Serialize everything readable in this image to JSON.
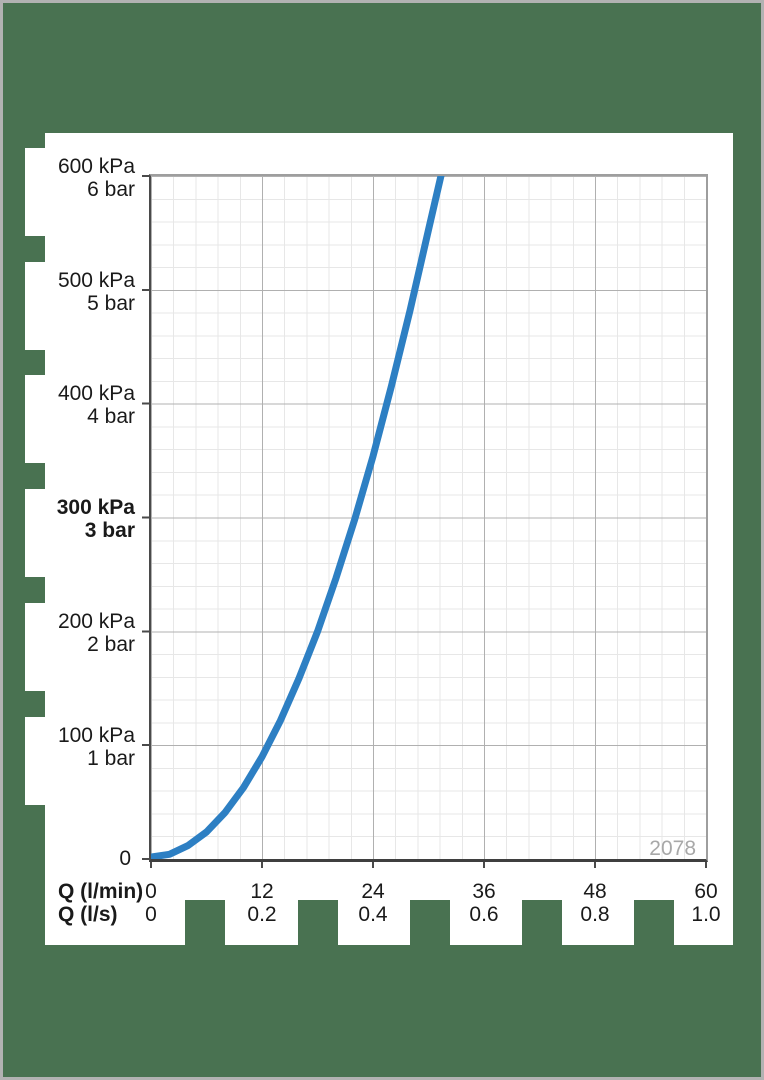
{
  "page": {
    "background_color": "#497251",
    "border_color": "#b2b2b2",
    "panel_color": "#ffffff"
  },
  "chart_data": {
    "type": "line",
    "title": "",
    "curve_label": "2078",
    "x_axis": {
      "rows": [
        {
          "label": "Q (l/min)",
          "ticks": [
            0,
            12,
            24,
            36,
            48,
            60
          ]
        },
        {
          "label": "Q (l/s)",
          "ticks": [
            0,
            0.2,
            0.4,
            0.6,
            0.8,
            1.0
          ]
        }
      ],
      "range_lmin": [
        0,
        60
      ],
      "minor_step_lmin": 2.4
    },
    "y_axis": {
      "ticks_kpa": [
        0,
        100,
        200,
        300,
        400,
        500,
        600
      ],
      "ticks_bar": [
        0,
        1,
        2,
        3,
        4,
        5,
        6
      ],
      "range_kpa": [
        0,
        600
      ],
      "minor_step_kpa": 20,
      "bold_tick_kpa": 300
    },
    "grid": {
      "shown": true,
      "major_x_step_lmin": 12,
      "major_y_step_kpa": 100
    },
    "series": [
      {
        "name": "pressure-loss-curve",
        "color": "#2d7fc3",
        "points_q_lmin_vs_kpa": [
          [
            0,
            0
          ],
          [
            2,
            2.4
          ],
          [
            4,
            10
          ],
          [
            6,
            22
          ],
          [
            8,
            39
          ],
          [
            10,
            61
          ],
          [
            12,
            88
          ],
          [
            14,
            120
          ],
          [
            16,
            157
          ],
          [
            18,
            198
          ],
          [
            20,
            245
          ],
          [
            22,
            296
          ],
          [
            24,
            352
          ],
          [
            26,
            414
          ],
          [
            28,
            480
          ],
          [
            30,
            551
          ],
          [
            31.4,
            600
          ]
        ]
      }
    ]
  },
  "y_labels": [
    {
      "kpa": "600 kPa",
      "bar": "6 bar"
    },
    {
      "kpa": "500 kPa",
      "bar": "5 bar"
    },
    {
      "kpa": "400 kPa",
      "bar": "4 bar"
    },
    {
      "kpa": "300 kPa",
      "bar": "3 bar"
    },
    {
      "kpa": "200 kPa",
      "bar": "2 bar"
    },
    {
      "kpa": "100 kPa",
      "bar": "1 bar"
    }
  ],
  "y_zero": "0",
  "x_header": {
    "row1": "Q (l/min)",
    "row2": "Q (l/s)"
  },
  "x_ticks": [
    {
      "lmin": "0",
      "ls": "0"
    },
    {
      "lmin": "12",
      "ls": "0.2"
    },
    {
      "lmin": "24",
      "ls": "0.4"
    },
    {
      "lmin": "36",
      "ls": "0.6"
    },
    {
      "lmin": "48",
      "ls": "0.8"
    },
    {
      "lmin": "60",
      "ls": "1.0"
    }
  ],
  "annotation": "2078"
}
